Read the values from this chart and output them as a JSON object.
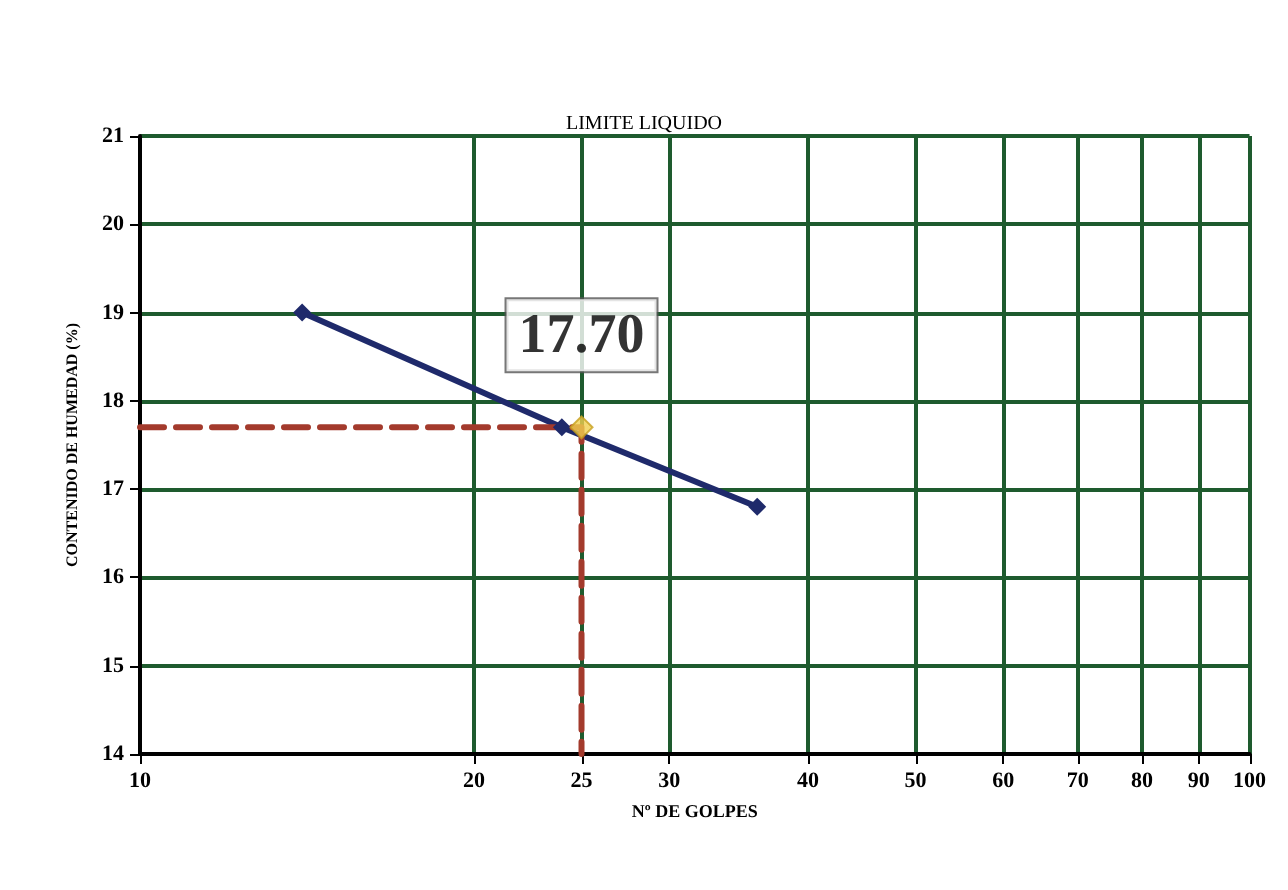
{
  "chart_data": {
    "type": "line",
    "title": "LIMITE LIQUIDO",
    "xlabel": "Nº DE GOLPES",
    "ylabel": "CONTENIDO DE HUMEDAD (%)",
    "log": "x",
    "xlim": [
      10,
      100
    ],
    "xticks": [
      10,
      20,
      25,
      30,
      40,
      50,
      60,
      70,
      80,
      90,
      100
    ],
    "ylim": [
      14,
      21
    ],
    "yticks": [
      14,
      15,
      16,
      17,
      18,
      19,
      20,
      21
    ],
    "grid": true,
    "series": [
      {
        "color": "#1f2a6b",
        "marker": "diamond",
        "line_style": "solid",
        "x": [
          14,
          24,
          36
        ],
        "values": [
          19.0,
          17.7,
          16.8
        ]
      },
      {
        "color": "#a33a2c",
        "marker": "none",
        "line_style": "dashed",
        "x": [
          10,
          25,
          25
        ],
        "values": [
          17.7,
          17.7,
          14
        ]
      },
      {
        "type": "scatter",
        "color": "#f0d050",
        "marker": "diamond",
        "x": [
          25
        ],
        "values": [
          17.7
        ]
      }
    ],
    "annotations": [
      {
        "text": "17.70",
        "x": 25,
        "y": 17.7
      }
    ]
  }
}
